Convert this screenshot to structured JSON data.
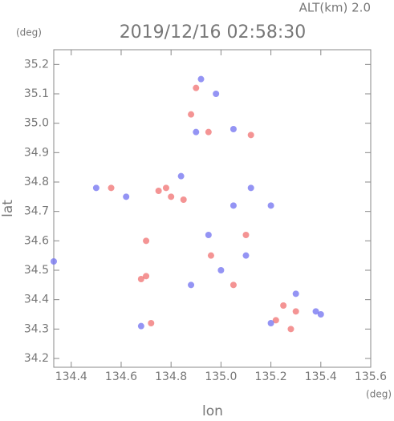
{
  "chart_data": {
    "type": "scatter",
    "altitude_label": "ALT(km) 2.0",
    "title": "2019/12/16 02:58:30",
    "y_unit": "(deg)",
    "x_unit": "(deg)",
    "y_label": "lat",
    "x_label": "lon",
    "xlim": [
      134.33,
      135.6
    ],
    "ylim": [
      34.17,
      35.25
    ],
    "xticks": [
      134.4,
      134.6,
      134.8,
      {
        "value": 135,
        "label": "135.0"
      },
      135.2,
      135.4,
      135.6
    ],
    "yticks": [
      34.2,
      34.3,
      34.4,
      34.5,
      34.6,
      34.7,
      34.8,
      34.9,
      {
        "value": 35,
        "label": "35.0"
      },
      35.1,
      35.2
    ],
    "series": [
      {
        "color": "#f07070",
        "x": [
          134.9,
          134.88,
          134.95,
          135.12,
          134.78,
          134.8,
          134.75,
          134.68,
          134.7,
          135.28,
          135.25,
          135.1,
          134.96,
          134.7,
          135.22,
          134.56,
          134.85,
          135.3,
          135.05,
          134.72
        ],
        "values": [
          35.12,
          35.03,
          34.97,
          34.96,
          34.78,
          34.75,
          34.77,
          34.47,
          34.48,
          34.3,
          34.38,
          34.62,
          34.55,
          34.6,
          34.33,
          34.78,
          34.74,
          34.36,
          34.45,
          34.32
        ]
      },
      {
        "color": "#7070f0",
        "x": [
          134.92,
          134.98,
          135.05,
          134.9,
          134.33,
          134.5,
          134.62,
          135.12,
          135.2,
          135.38,
          135.4,
          135.3,
          135.0,
          134.95,
          135.1,
          134.68,
          134.84,
          135.05,
          134.88,
          135.2
        ],
        "values": [
          35.15,
          35.1,
          34.98,
          34.97,
          34.53,
          34.78,
          34.75,
          34.78,
          34.72,
          34.36,
          34.35,
          34.42,
          34.5,
          34.62,
          34.55,
          34.31,
          34.82,
          34.72,
          34.45,
          34.32
        ]
      }
    ]
  }
}
